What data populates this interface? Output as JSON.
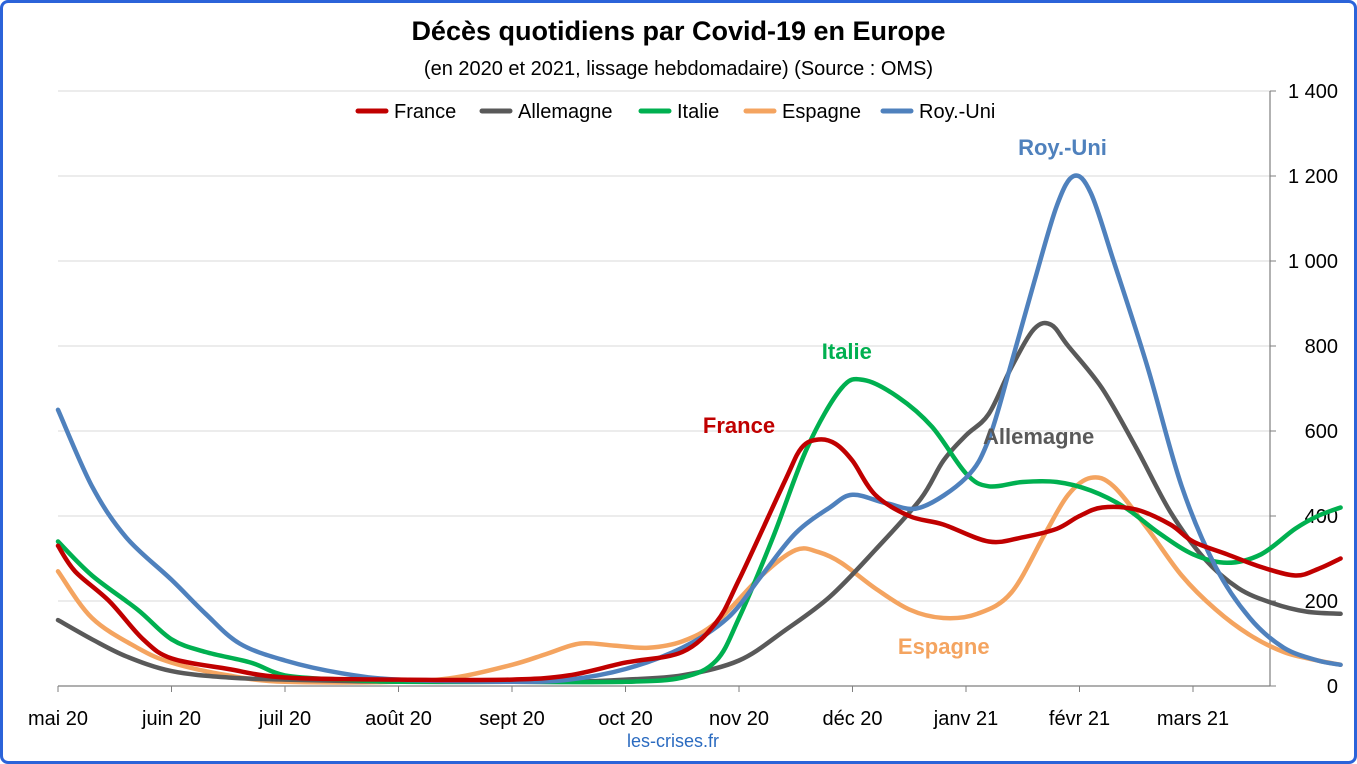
{
  "chart_data": {
    "type": "line",
    "title": "Décès quotidiens par Covid-19 en Europe",
    "subtitle": "(en 2020 et 2021, lissage hebdomadaire) (Source : OMS)",
    "source_label": "les-crises.fr",
    "x_ticks": [
      "mai 20",
      "juin 20",
      "juil 20",
      "août 20",
      "sept 20",
      "oct 20",
      "nov 20",
      "déc 20",
      "janv 21",
      "févr 21",
      "mars 21"
    ],
    "y_ticks": [
      "0",
      "200",
      "400",
      "600",
      "800",
      "1 000",
      "1 200",
      "1 400"
    ],
    "ylim": [
      0,
      1400
    ],
    "xlim": [
      0,
      11.3
    ],
    "y_axis_side": "right",
    "grid": "horizontal",
    "legend_position": "top",
    "series": [
      {
        "name": "France",
        "color": "#c00000",
        "annotation": "France",
        "points": [
          [
            0,
            330
          ],
          [
            0.15,
            270
          ],
          [
            0.45,
            200
          ],
          [
            0.75,
            110
          ],
          [
            1,
            65
          ],
          [
            1.5,
            40
          ],
          [
            2,
            20
          ],
          [
            3,
            15
          ],
          [
            4,
            15
          ],
          [
            4.5,
            25
          ],
          [
            5,
            55
          ],
          [
            5.5,
            80
          ],
          [
            5.8,
            150
          ],
          [
            6,
            250
          ],
          [
            6.4,
            480
          ],
          [
            6.55,
            560
          ],
          [
            6.7,
            580
          ],
          [
            6.85,
            570
          ],
          [
            7,
            530
          ],
          [
            7.2,
            450
          ],
          [
            7.5,
            400
          ],
          [
            7.8,
            380
          ],
          [
            8.2,
            340
          ],
          [
            8.5,
            350
          ],
          [
            8.8,
            370
          ],
          [
            9,
            400
          ],
          [
            9.2,
            420
          ],
          [
            9.5,
            415
          ],
          [
            9.8,
            380
          ],
          [
            10,
            340
          ],
          [
            10.3,
            310
          ],
          [
            10.6,
            280
          ],
          [
            10.9,
            260
          ],
          [
            11.1,
            275
          ],
          [
            11.3,
            300
          ]
        ]
      },
      {
        "name": "Allemagne",
        "color": "#595959",
        "annotation": "Allemagne",
        "points": [
          [
            0,
            155
          ],
          [
            0.3,
            110
          ],
          [
            0.6,
            70
          ],
          [
            1,
            35
          ],
          [
            1.5,
            20
          ],
          [
            2,
            15
          ],
          [
            3,
            10
          ],
          [
            4,
            10
          ],
          [
            4.5,
            10
          ],
          [
            5,
            15
          ],
          [
            5.5,
            25
          ],
          [
            6,
            60
          ],
          [
            6.4,
            130
          ],
          [
            6.8,
            210
          ],
          [
            7.2,
            320
          ],
          [
            7.6,
            440
          ],
          [
            7.8,
            530
          ],
          [
            8,
            590
          ],
          [
            8.2,
            640
          ],
          [
            8.4,
            750
          ],
          [
            8.6,
            840
          ],
          [
            8.75,
            850
          ],
          [
            8.9,
            800
          ],
          [
            9.2,
            700
          ],
          [
            9.5,
            560
          ],
          [
            9.8,
            410
          ],
          [
            10.1,
            300
          ],
          [
            10.4,
            230
          ],
          [
            10.7,
            195
          ],
          [
            11,
            175
          ],
          [
            11.3,
            170
          ]
        ]
      },
      {
        "name": "Italie",
        "color": "#00b050",
        "annotation": "Italie",
        "points": [
          [
            0,
            340
          ],
          [
            0.3,
            260
          ],
          [
            0.7,
            180
          ],
          [
            1,
            110
          ],
          [
            1.3,
            80
          ],
          [
            1.7,
            55
          ],
          [
            2,
            25
          ],
          [
            2.5,
            15
          ],
          [
            3,
            10
          ],
          [
            4,
            10
          ],
          [
            5,
            10
          ],
          [
            5.5,
            20
          ],
          [
            5.8,
            60
          ],
          [
            6,
            160
          ],
          [
            6.3,
            350
          ],
          [
            6.6,
            560
          ],
          [
            6.9,
            700
          ],
          [
            7.1,
            720
          ],
          [
            7.4,
            680
          ],
          [
            7.7,
            610
          ],
          [
            8,
            500
          ],
          [
            8.2,
            470
          ],
          [
            8.5,
            480
          ],
          [
            8.8,
            480
          ],
          [
            9.1,
            460
          ],
          [
            9.4,
            420
          ],
          [
            9.7,
            360
          ],
          [
            10,
            310
          ],
          [
            10.3,
            290
          ],
          [
            10.6,
            310
          ],
          [
            10.9,
            370
          ],
          [
            11.1,
            400
          ],
          [
            11.3,
            420
          ]
        ]
      },
      {
        "name": "Espagne",
        "color": "#f4a460",
        "annotation": "Espagne",
        "points": [
          [
            0,
            270
          ],
          [
            0.3,
            160
          ],
          [
            0.7,
            90
          ],
          [
            1,
            55
          ],
          [
            1.5,
            25
          ],
          [
            2,
            10
          ],
          [
            3,
            10
          ],
          [
            3.5,
            20
          ],
          [
            4,
            50
          ],
          [
            4.3,
            75
          ],
          [
            4.6,
            100
          ],
          [
            4.9,
            95
          ],
          [
            5.2,
            90
          ],
          [
            5.5,
            105
          ],
          [
            5.8,
            150
          ],
          [
            6.2,
            260
          ],
          [
            6.5,
            320
          ],
          [
            6.7,
            315
          ],
          [
            6.9,
            290
          ],
          [
            7.2,
            230
          ],
          [
            7.5,
            180
          ],
          [
            7.8,
            160
          ],
          [
            8.1,
            170
          ],
          [
            8.4,
            220
          ],
          [
            8.7,
            360
          ],
          [
            8.9,
            450
          ],
          [
            9.1,
            490
          ],
          [
            9.3,
            470
          ],
          [
            9.6,
            370
          ],
          [
            9.9,
            260
          ],
          [
            10.2,
            180
          ],
          [
            10.5,
            120
          ],
          [
            10.8,
            80
          ],
          [
            11.1,
            60
          ],
          [
            11.3,
            50
          ]
        ]
      },
      {
        "name": "Roy.-Uni",
        "color": "#4f81bd",
        "annotation": "Roy.-Uni",
        "points": [
          [
            0,
            650
          ],
          [
            0.3,
            470
          ],
          [
            0.6,
            350
          ],
          [
            1,
            250
          ],
          [
            1.3,
            170
          ],
          [
            1.6,
            100
          ],
          [
            2,
            60
          ],
          [
            2.5,
            30
          ],
          [
            3,
            15
          ],
          [
            4,
            10
          ],
          [
            4.5,
            15
          ],
          [
            5,
            40
          ],
          [
            5.5,
            90
          ],
          [
            5.9,
            160
          ],
          [
            6.2,
            260
          ],
          [
            6.5,
            360
          ],
          [
            6.8,
            420
          ],
          [
            7,
            450
          ],
          [
            7.3,
            430
          ],
          [
            7.6,
            420
          ],
          [
            8,
            490
          ],
          [
            8.2,
            580
          ],
          [
            8.4,
            760
          ],
          [
            8.6,
            950
          ],
          [
            8.8,
            1130
          ],
          [
            8.95,
            1200
          ],
          [
            9.1,
            1160
          ],
          [
            9.3,
            1000
          ],
          [
            9.6,
            750
          ],
          [
            9.9,
            470
          ],
          [
            10.2,
            280
          ],
          [
            10.5,
            160
          ],
          [
            10.8,
            90
          ],
          [
            11.1,
            60
          ],
          [
            11.3,
            50
          ]
        ]
      }
    ]
  }
}
